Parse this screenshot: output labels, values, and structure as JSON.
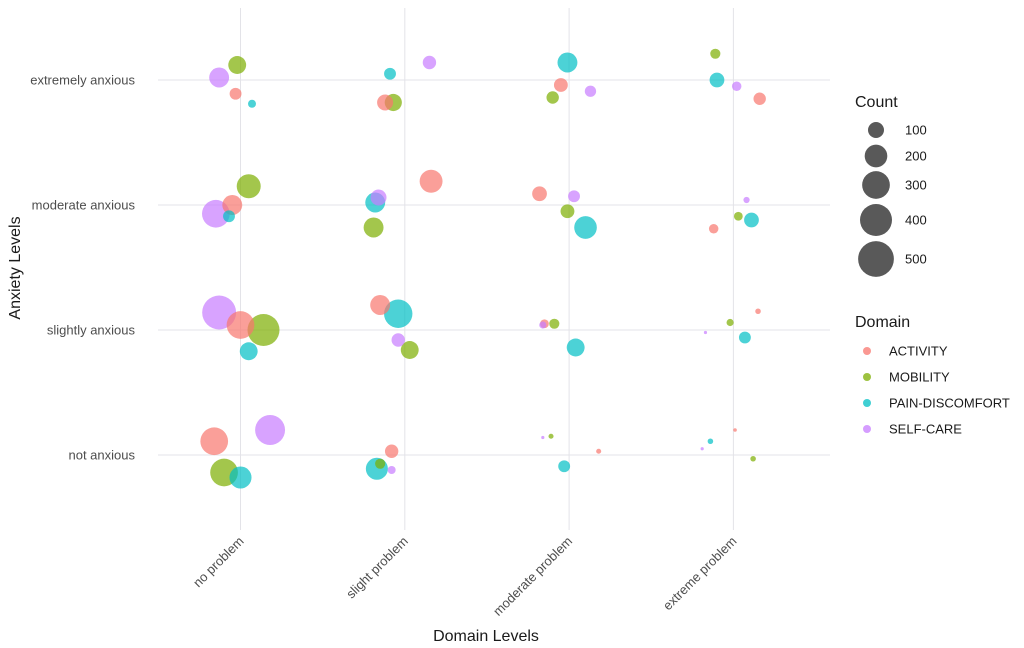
{
  "chart_data": {
    "type": "scatter",
    "subtype": "jittered bubble",
    "title": "",
    "xlabel": "Domain Levels",
    "ylabel": "Anxiety Levels",
    "x_categories": [
      "no problem",
      "slight problem",
      "moderate problem",
      "extreme problem"
    ],
    "y_categories": [
      "not anxious",
      "slightly anxious",
      "moderate anxious",
      "extremely anxious"
    ],
    "grid": true,
    "legend_position": "right",
    "size_legend": {
      "title": "Count",
      "values": [
        100,
        200,
        300,
        400,
        500
      ],
      "labels": [
        "100",
        "200",
        "300",
        "400",
        "500"
      ],
      "color": "#595959"
    },
    "color_legend": {
      "title": "Domain",
      "entries": [
        {
          "name": "ACTIVITY",
          "color": "#F8766D"
        },
        {
          "name": "MOBILITY",
          "color": "#7CAE00"
        },
        {
          "name": "PAIN-DISCOMFORT",
          "color": "#00BFC4"
        },
        {
          "name": "SELF-CARE",
          "color": "#C77CFF"
        }
      ]
    },
    "series": [
      {
        "name": "ACTIVITY",
        "color": "#F8766D",
        "points": [
          {
            "x": "no problem",
            "y": "not anxious",
            "x_jitter": -0.16,
            "y_jitter": 0.11,
            "count": 300
          },
          {
            "x": "no problem",
            "y": "slightly anxious",
            "x_jitter": 0.0,
            "y_jitter": 0.04,
            "count": 300
          },
          {
            "x": "no problem",
            "y": "moderate anxious",
            "x_jitter": -0.05,
            "y_jitter": 0.0,
            "count": 155
          },
          {
            "x": "no problem",
            "y": "extremely anxious",
            "x_jitter": -0.03,
            "y_jitter": -0.11,
            "count": 55
          },
          {
            "x": "slight problem",
            "y": "not anxious",
            "x_jitter": -0.08,
            "y_jitter": 0.03,
            "count": 70
          },
          {
            "x": "slight problem",
            "y": "slightly anxious",
            "x_jitter": -0.15,
            "y_jitter": 0.2,
            "count": 155
          },
          {
            "x": "slight problem",
            "y": "moderate anxious",
            "x_jitter": 0.16,
            "y_jitter": 0.19,
            "count": 205
          },
          {
            "x": "slight problem",
            "y": "extremely anxious",
            "x_jitter": -0.12,
            "y_jitter": -0.18,
            "count": 100
          },
          {
            "x": "moderate problem",
            "y": "not anxious",
            "x_jitter": 0.18,
            "y_jitter": 0.03,
            "count": 10
          },
          {
            "x": "moderate problem",
            "y": "slightly anxious",
            "x_jitter": -0.15,
            "y_jitter": 0.05,
            "count": 30
          },
          {
            "x": "moderate problem",
            "y": "moderate anxious",
            "x_jitter": -0.18,
            "y_jitter": 0.09,
            "count": 85
          },
          {
            "x": "moderate problem",
            "y": "extremely anxious",
            "x_jitter": -0.05,
            "y_jitter": -0.04,
            "count": 75
          },
          {
            "x": "extreme problem",
            "y": "not anxious",
            "x_jitter": 0.01,
            "y_jitter": 0.2,
            "count": 5
          },
          {
            "x": "extreme problem",
            "y": "slightly anxious",
            "x_jitter": 0.15,
            "y_jitter": 0.15,
            "count": 12
          },
          {
            "x": "extreme problem",
            "y": "moderate anxious",
            "x_jitter": -0.12,
            "y_jitter": -0.19,
            "count": 35
          },
          {
            "x": "extreme problem",
            "y": "extremely anxious",
            "x_jitter": 0.16,
            "y_jitter": -0.15,
            "count": 60
          }
        ]
      },
      {
        "name": "MOBILITY",
        "color": "#7CAE00",
        "points": [
          {
            "x": "no problem",
            "y": "not anxious",
            "x_jitter": -0.1,
            "y_jitter": -0.14,
            "count": 300
          },
          {
            "x": "no problem",
            "y": "slightly anxious",
            "x_jitter": 0.14,
            "y_jitter": 0.0,
            "count": 400
          },
          {
            "x": "no problem",
            "y": "moderate anxious",
            "x_jitter": 0.05,
            "y_jitter": 0.15,
            "count": 225
          },
          {
            "x": "no problem",
            "y": "extremely anxious",
            "x_jitter": -0.02,
            "y_jitter": 0.12,
            "count": 125
          },
          {
            "x": "slight problem",
            "y": "not anxious",
            "x_jitter": -0.15,
            "y_jitter": -0.07,
            "count": 40
          },
          {
            "x": "slight problem",
            "y": "slightly anxious",
            "x_jitter": 0.03,
            "y_jitter": -0.16,
            "count": 125
          },
          {
            "x": "slight problem",
            "y": "moderate anxious",
            "x_jitter": -0.19,
            "y_jitter": -0.18,
            "count": 155
          },
          {
            "x": "slight problem",
            "y": "extremely anxious",
            "x_jitter": -0.07,
            "y_jitter": -0.18,
            "count": 115
          },
          {
            "x": "moderate problem",
            "y": "not anxious",
            "x_jitter": -0.11,
            "y_jitter": 0.15,
            "count": 10
          },
          {
            "x": "moderate problem",
            "y": "slightly anxious",
            "x_jitter": -0.09,
            "y_jitter": 0.05,
            "count": 40
          },
          {
            "x": "moderate problem",
            "y": "moderate anxious",
            "x_jitter": -0.01,
            "y_jitter": -0.05,
            "count": 75
          },
          {
            "x": "moderate problem",
            "y": "extremely anxious",
            "x_jitter": -0.1,
            "y_jitter": -0.14,
            "count": 60
          },
          {
            "x": "extreme problem",
            "y": "not anxious",
            "x_jitter": 0.12,
            "y_jitter": -0.03,
            "count": 12
          },
          {
            "x": "extreme problem",
            "y": "slightly anxious",
            "x_jitter": -0.02,
            "y_jitter": 0.06,
            "count": 20
          },
          {
            "x": "extreme problem",
            "y": "moderate anxious",
            "x_jitter": 0.03,
            "y_jitter": -0.09,
            "count": 30
          },
          {
            "x": "extreme problem",
            "y": "extremely anxious",
            "x_jitter": -0.11,
            "y_jitter": 0.21,
            "count": 40
          }
        ]
      },
      {
        "name": "PAIN-DISCOMFORT",
        "color": "#00BFC4",
        "points": [
          {
            "x": "no problem",
            "y": "not anxious",
            "x_jitter": 0.0,
            "y_jitter": -0.18,
            "count": 190
          },
          {
            "x": "no problem",
            "y": "slightly anxious",
            "x_jitter": 0.05,
            "y_jitter": -0.17,
            "count": 125
          },
          {
            "x": "no problem",
            "y": "moderate anxious",
            "x_jitter": -0.07,
            "y_jitter": -0.09,
            "count": 55
          },
          {
            "x": "no problem",
            "y": "extremely anxious",
            "x_jitter": 0.07,
            "y_jitter": -0.19,
            "count": 25
          },
          {
            "x": "slight problem",
            "y": "not anxious",
            "x_jitter": -0.17,
            "y_jitter": -0.11,
            "count": 190
          },
          {
            "x": "slight problem",
            "y": "slightly anxious",
            "x_jitter": -0.04,
            "y_jitter": 0.13,
            "count": 315
          },
          {
            "x": "slight problem",
            "y": "moderate anxious",
            "x_jitter": -0.18,
            "y_jitter": 0.02,
            "count": 155
          },
          {
            "x": "slight problem",
            "y": "extremely anxious",
            "x_jitter": -0.09,
            "y_jitter": 0.05,
            "count": 55
          },
          {
            "x": "moderate problem",
            "y": "not anxious",
            "x_jitter": -0.03,
            "y_jitter": -0.09,
            "count": 55
          },
          {
            "x": "moderate problem",
            "y": "slightly anxious",
            "x_jitter": 0.04,
            "y_jitter": -0.14,
            "count": 125
          },
          {
            "x": "moderate problem",
            "y": "moderate anxious",
            "x_jitter": 0.1,
            "y_jitter": -0.18,
            "count": 200
          },
          {
            "x": "moderate problem",
            "y": "extremely anxious",
            "x_jitter": -0.01,
            "y_jitter": 0.14,
            "count": 155
          },
          {
            "x": "extreme problem",
            "y": "not anxious",
            "x_jitter": -0.14,
            "y_jitter": 0.11,
            "count": 12
          },
          {
            "x": "extreme problem",
            "y": "slightly anxious",
            "x_jitter": 0.07,
            "y_jitter": -0.06,
            "count": 55
          },
          {
            "x": "extreme problem",
            "y": "moderate anxious",
            "x_jitter": 0.11,
            "y_jitter": -0.12,
            "count": 85
          },
          {
            "x": "extreme problem",
            "y": "extremely anxious",
            "x_jitter": -0.1,
            "y_jitter": 0.0,
            "count": 85
          }
        ]
      },
      {
        "name": "SELF-CARE",
        "color": "#C77CFF",
        "points": [
          {
            "x": "no problem",
            "y": "not anxious",
            "x_jitter": 0.18,
            "y_jitter": 0.2,
            "count": 350
          },
          {
            "x": "no problem",
            "y": "slightly anxious",
            "x_jitter": -0.13,
            "y_jitter": 0.14,
            "count": 450
          },
          {
            "x": "no problem",
            "y": "moderate anxious",
            "x_jitter": -0.15,
            "y_jitter": -0.07,
            "count": 300
          },
          {
            "x": "no problem",
            "y": "extremely anxious",
            "x_jitter": -0.13,
            "y_jitter": 0.02,
            "count": 155
          },
          {
            "x": "slight problem",
            "y": "not anxious",
            "x_jitter": -0.08,
            "y_jitter": -0.12,
            "count": 25
          },
          {
            "x": "slight problem",
            "y": "slightly anxious",
            "x_jitter": -0.04,
            "y_jitter": -0.08,
            "count": 70
          },
          {
            "x": "slight problem",
            "y": "moderate anxious",
            "x_jitter": -0.16,
            "y_jitter": 0.06,
            "count": 100
          },
          {
            "x": "slight problem",
            "y": "extremely anxious",
            "x_jitter": 0.15,
            "y_jitter": 0.14,
            "count": 70
          },
          {
            "x": "moderate problem",
            "y": "not anxious",
            "x_jitter": -0.16,
            "y_jitter": 0.14,
            "count": 4
          },
          {
            "x": "moderate problem",
            "y": "slightly anxious",
            "x_jitter": -0.16,
            "y_jitter": 0.04,
            "count": 20
          },
          {
            "x": "moderate problem",
            "y": "moderate anxious",
            "x_jitter": 0.03,
            "y_jitter": 0.07,
            "count": 55
          },
          {
            "x": "moderate problem",
            "y": "extremely anxious",
            "x_jitter": 0.13,
            "y_jitter": -0.09,
            "count": 50
          },
          {
            "x": "extreme problem",
            "y": "not anxious",
            "x_jitter": -0.19,
            "y_jitter": 0.05,
            "count": 4
          },
          {
            "x": "extreme problem",
            "y": "slightly anxious",
            "x_jitter": -0.17,
            "y_jitter": -0.02,
            "count": 4
          },
          {
            "x": "extreme problem",
            "y": "moderate anxious",
            "x_jitter": 0.08,
            "y_jitter": 0.04,
            "count": 15
          },
          {
            "x": "extreme problem",
            "y": "extremely anxious",
            "x_jitter": 0.02,
            "y_jitter": -0.05,
            "count": 35
          }
        ]
      }
    ]
  }
}
